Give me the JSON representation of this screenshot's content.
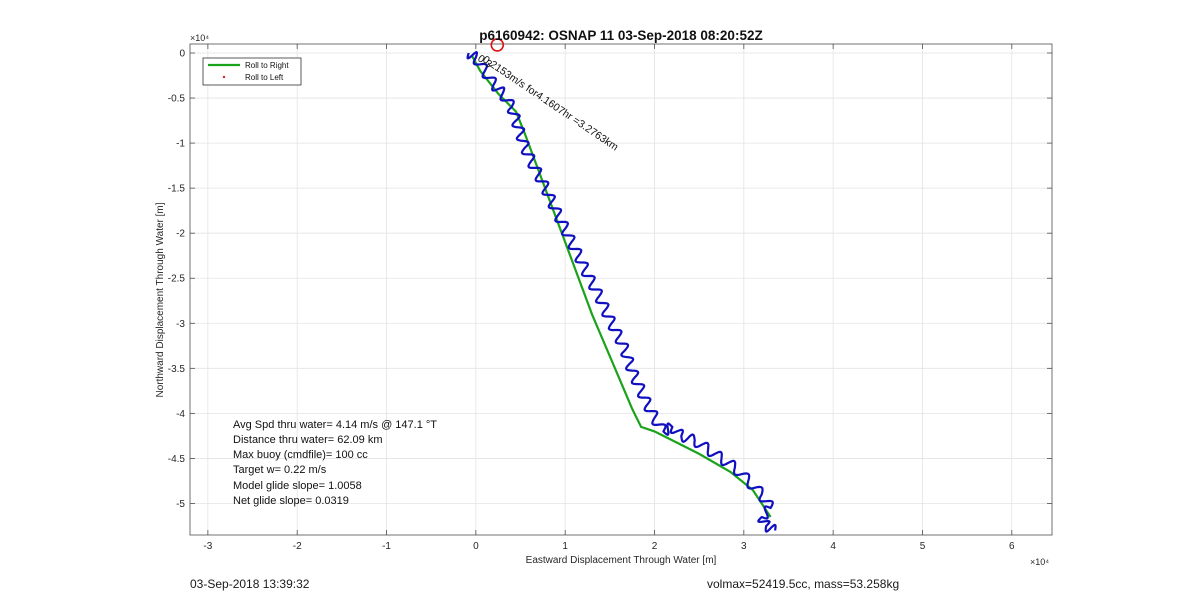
{
  "chart_data": {
    "type": "line",
    "title": "p6160942: OSNAP 11 03-Sep-2018 08:20:52Z",
    "xlabel": "Eastward Displacement Through Water [m]",
    "ylabel": "Northward Displacement Through Water [m]",
    "x_exponent_label": "×10⁴",
    "y_exponent_label": "×10⁴",
    "xlim": [
      -3.2,
      6.45
    ],
    "ylim": [
      -5.35,
      0.1
    ],
    "x_ticks": [
      -3,
      -2,
      -1,
      0,
      1,
      2,
      3,
      4,
      5,
      6
    ],
    "x_tick_labels": [
      "-3",
      "-2",
      "-1",
      "0",
      "1",
      "2",
      "3",
      "4",
      "5",
      "6"
    ],
    "y_ticks": [
      0,
      -0.5,
      -1,
      -1.5,
      -2,
      -2.5,
      -3,
      -3.5,
      -4,
      -4.5,
      -5
    ],
    "y_tick_labels": [
      "0",
      "-0.5",
      "-1",
      "-1.5",
      "-2",
      "-2.5",
      "-3",
      "-3.5",
      "-4",
      "-4.5",
      "-5"
    ],
    "grid": true,
    "legend_position": "top-left",
    "legend": [
      {
        "label": "Roll to Right",
        "color": "#1aa31a",
        "marker": "line"
      },
      {
        "label": "Roll to Left",
        "color": "#dd2222",
        "marker": "dot"
      }
    ],
    "series": [
      {
        "name": "Roll to Right",
        "color": "#1aa31a",
        "x": [
          -0.05,
          0.05,
          0.25,
          0.45,
          0.55,
          0.7,
          0.85,
          1.0,
          1.15,
          1.3,
          1.45,
          1.6,
          1.75,
          1.85,
          2.0,
          2.2,
          2.5,
          2.85,
          3.1,
          3.3
        ],
        "y": [
          -0.02,
          -0.2,
          -0.45,
          -0.65,
          -0.9,
          -1.3,
          -1.7,
          -2.1,
          -2.5,
          -2.9,
          -3.25,
          -3.6,
          -3.95,
          -4.15,
          -4.2,
          -4.3,
          -4.45,
          -4.65,
          -4.85,
          -5.15
        ]
      },
      {
        "name": "",
        "color": "#1010c0",
        "x": [
          -0.08,
          0.0,
          0.1,
          0.2,
          0.3,
          0.4,
          0.45,
          0.5,
          0.55,
          0.62,
          0.7,
          0.78,
          0.85,
          0.92,
          1.0,
          1.07,
          1.15,
          1.22,
          1.3,
          1.38,
          1.45,
          1.52,
          1.6,
          1.67,
          1.72,
          1.78,
          1.85,
          1.92,
          2.0,
          2.1,
          2.2,
          2.3,
          2.45,
          2.6,
          2.75,
          2.9,
          3.05,
          3.2,
          3.3,
          3.2,
          3.25,
          3.35
        ],
        "y": [
          0.0,
          -0.05,
          -0.2,
          -0.35,
          -0.45,
          -0.6,
          -0.75,
          -0.9,
          -1.05,
          -1.2,
          -1.35,
          -1.5,
          -1.65,
          -1.8,
          -1.95,
          -2.1,
          -2.25,
          -2.4,
          -2.55,
          -2.7,
          -2.85,
          -3.0,
          -3.15,
          -3.3,
          -3.45,
          -3.6,
          -3.75,
          -3.9,
          -4.05,
          -4.2,
          -4.15,
          -4.25,
          -4.3,
          -4.4,
          -4.5,
          -4.6,
          -4.75,
          -4.9,
          -5.05,
          -5.15,
          -5.25,
          -5.3
        ]
      }
    ],
    "start_marker": {
      "x": 0.24,
      "y": 0.09,
      "color": "#dd1111"
    },
    "annotation_rotated": "0.2153m/s for4.1607hr =3.2763km",
    "annotation_overlap": "0.3",
    "annotation_block": [
      "Avg Spd thru water=  4.14 m/s @ 147.1 °T",
      "Distance thru water= 62.09 km",
      "Max buoy (cmdfile)= 100 cc",
      "Target w= 0.22 m/s",
      "Model glide slope= 1.0058",
      "Net glide slope= 0.0319"
    ]
  },
  "footer": {
    "left": "03-Sep-2018 13:39:32",
    "right": "volmax=52419.5cc, mass=53.258kg"
  }
}
